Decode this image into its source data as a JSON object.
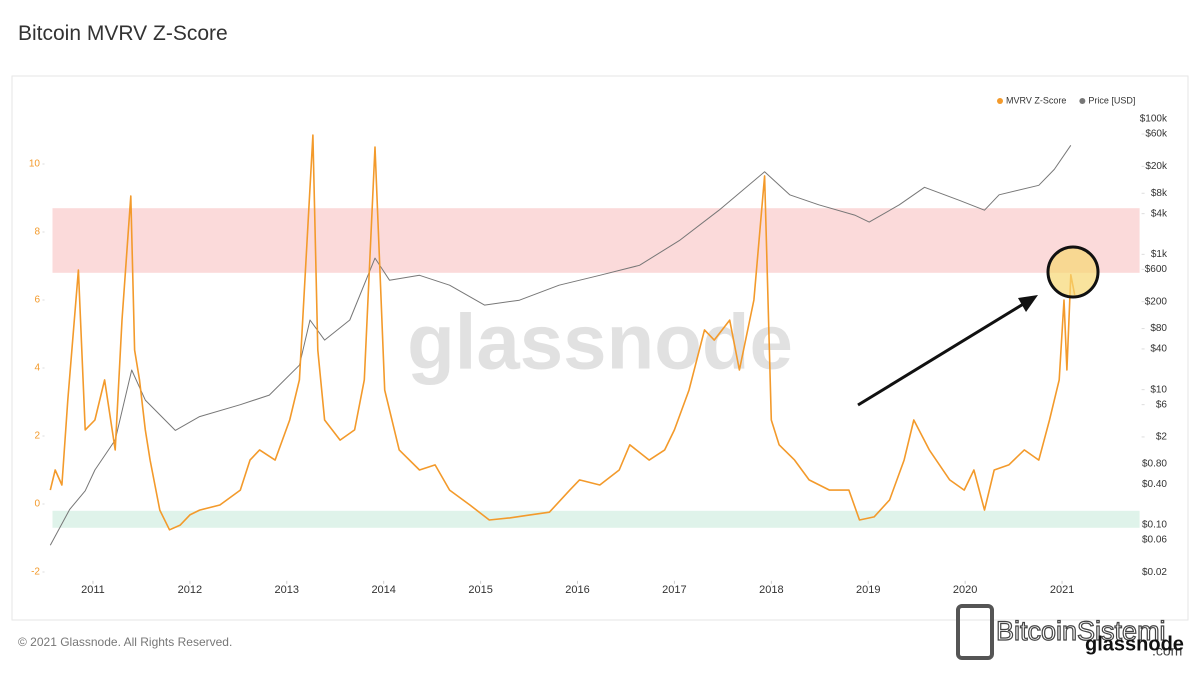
{
  "header": {
    "title": "Bitcoin MVRV Z-Score"
  },
  "chart_data": {
    "type": "line",
    "xlim": [
      2010.5,
      2021.8
    ],
    "xticks": [
      2011,
      2012,
      2013,
      2014,
      2015,
      2016,
      2017,
      2018,
      2019,
      2020,
      2021
    ],
    "ylim": [
      -2.2,
      11.6
    ],
    "yticks": [
      -2,
      0,
      2,
      4,
      6,
      8,
      10
    ],
    "y2lim": [
      0.016,
      138000
    ],
    "y2scale": "log",
    "y2ticks": [
      {
        "value": 100000,
        "label": "$100k"
      },
      {
        "value": 60000,
        "label": "$60k"
      },
      {
        "value": 20000,
        "label": "$20k"
      },
      {
        "value": 8000,
        "label": "$8k"
      },
      {
        "value": 4000,
        "label": "$4k"
      },
      {
        "value": 1000,
        "label": "$1k"
      },
      {
        "value": 600,
        "label": "$600"
      },
      {
        "value": 200,
        "label": "$200"
      },
      {
        "value": 80,
        "label": "$80"
      },
      {
        "value": 40,
        "label": "$40"
      },
      {
        "value": 10,
        "label": "$10"
      },
      {
        "value": 6,
        "label": "$6"
      },
      {
        "value": 2,
        "label": "$2"
      },
      {
        "value": 0.8,
        "label": "$0.80"
      },
      {
        "value": 0.4,
        "label": "$0.40"
      },
      {
        "value": 0.1,
        "label": "$0.10"
      },
      {
        "value": 0.06,
        "label": "$0.06"
      },
      {
        "value": 0.02,
        "label": "$0.02"
      }
    ],
    "bands": [
      {
        "from": 6.8,
        "to": 8.7,
        "color": "#fbdada"
      },
      {
        "from": -0.7,
        "to": -0.2,
        "color": "#dff3ea"
      }
    ],
    "legend": "top-right",
    "series": [
      {
        "name": "MVRV Z-Score",
        "color": "#f39a2b",
        "axis": "y",
        "x": [
          2010.56,
          2010.61,
          2010.68,
          2010.74,
          2010.85,
          2010.92,
          2011.02,
          2011.12,
          2011.23,
          2011.3,
          2011.39,
          2011.43,
          2011.48,
          2011.54,
          2011.59,
          2011.69,
          2011.79,
          2011.9,
          2012.0,
          2012.1,
          2012.31,
          2012.52,
          2012.62,
          2012.72,
          2012.88,
          2013.03,
          2013.13,
          2013.27,
          2013.32,
          2013.39,
          2013.55,
          2013.7,
          2013.8,
          2013.91,
          2014.01,
          2014.16,
          2014.37,
          2014.53,
          2014.68,
          2014.89,
          2015.09,
          2015.3,
          2015.51,
          2015.71,
          2015.92,
          2016.02,
          2016.23,
          2016.43,
          2016.54,
          2016.74,
          2016.9,
          2017.0,
          2017.15,
          2017.31,
          2017.41,
          2017.57,
          2017.67,
          2017.82,
          2017.93,
          2018.0,
          2018.08,
          2018.24,
          2018.39,
          2018.6,
          2018.8,
          2018.91,
          2019.06,
          2019.22,
          2019.37,
          2019.47,
          2019.63,
          2019.84,
          2019.99,
          2020.09,
          2020.2,
          2020.3,
          2020.45,
          2020.61,
          2020.76,
          2020.87,
          2020.97,
          2021.02,
          2021.05,
          2021.09,
          2021.13
        ],
        "values": [
          0.41,
          1.0,
          0.56,
          3.06,
          6.88,
          2.18,
          2.47,
          3.65,
          1.59,
          5.41,
          9.06,
          4.53,
          3.65,
          2.18,
          1.29,
          -0.18,
          -0.76,
          -0.62,
          -0.32,
          -0.18,
          -0.03,
          0.41,
          1.29,
          1.59,
          1.29,
          2.47,
          3.65,
          10.85,
          4.53,
          2.47,
          1.88,
          2.18,
          3.65,
          10.5,
          3.35,
          1.59,
          1.0,
          1.15,
          0.41,
          -0.03,
          -0.47,
          -0.41,
          -0.32,
          -0.24,
          0.41,
          0.71,
          0.56,
          1.0,
          1.74,
          1.29,
          1.59,
          2.18,
          3.35,
          5.12,
          4.82,
          5.41,
          3.94,
          6.0,
          9.65,
          2.47,
          1.74,
          1.29,
          0.71,
          0.41,
          0.41,
          -0.47,
          -0.38,
          0.12,
          1.29,
          2.47,
          1.59,
          0.71,
          0.41,
          1.0,
          -0.18,
          1.0,
          1.15,
          1.59,
          1.29,
          2.47,
          3.65,
          6.0,
          3.94,
          6.74,
          6.15
        ]
      },
      {
        "name": "Price [USD]",
        "color": "#777777",
        "axis": "y2",
        "x": [
          2010.56,
          2010.76,
          2010.92,
          2011.02,
          2011.23,
          2011.4,
          2011.54,
          2011.85,
          2012.1,
          2012.52,
          2012.82,
          2013.13,
          2013.24,
          2013.39,
          2013.65,
          2013.91,
          2014.06,
          2014.37,
          2014.68,
          2015.04,
          2015.4,
          2015.81,
          2016.23,
          2016.64,
          2017.05,
          2017.46,
          2017.93,
          2018.19,
          2018.49,
          2018.86,
          2019.01,
          2019.32,
          2019.58,
          2019.94,
          2020.2,
          2020.35,
          2020.76,
          2020.92,
          2021.09
        ],
        "values": [
          0.05,
          0.17,
          0.32,
          0.65,
          1.8,
          19.5,
          7,
          2.5,
          4,
          6,
          8.3,
          23,
          107,
          54,
          107,
          880,
          415,
          490,
          350,
          178,
          210,
          350,
          490,
          690,
          1600,
          4500,
          16600,
          7600,
          5400,
          3800,
          3000,
          5400,
          9800,
          6300,
          4500,
          7600,
          10500,
          18000,
          41000
        ]
      }
    ]
  },
  "watermark": "glassnode",
  "footer": "© 2021 Glassnode. All Rights Reserved.",
  "brand": {
    "name": "BitcoinSistemi",
    "domain": ".com",
    "overlay": "glassnode"
  }
}
